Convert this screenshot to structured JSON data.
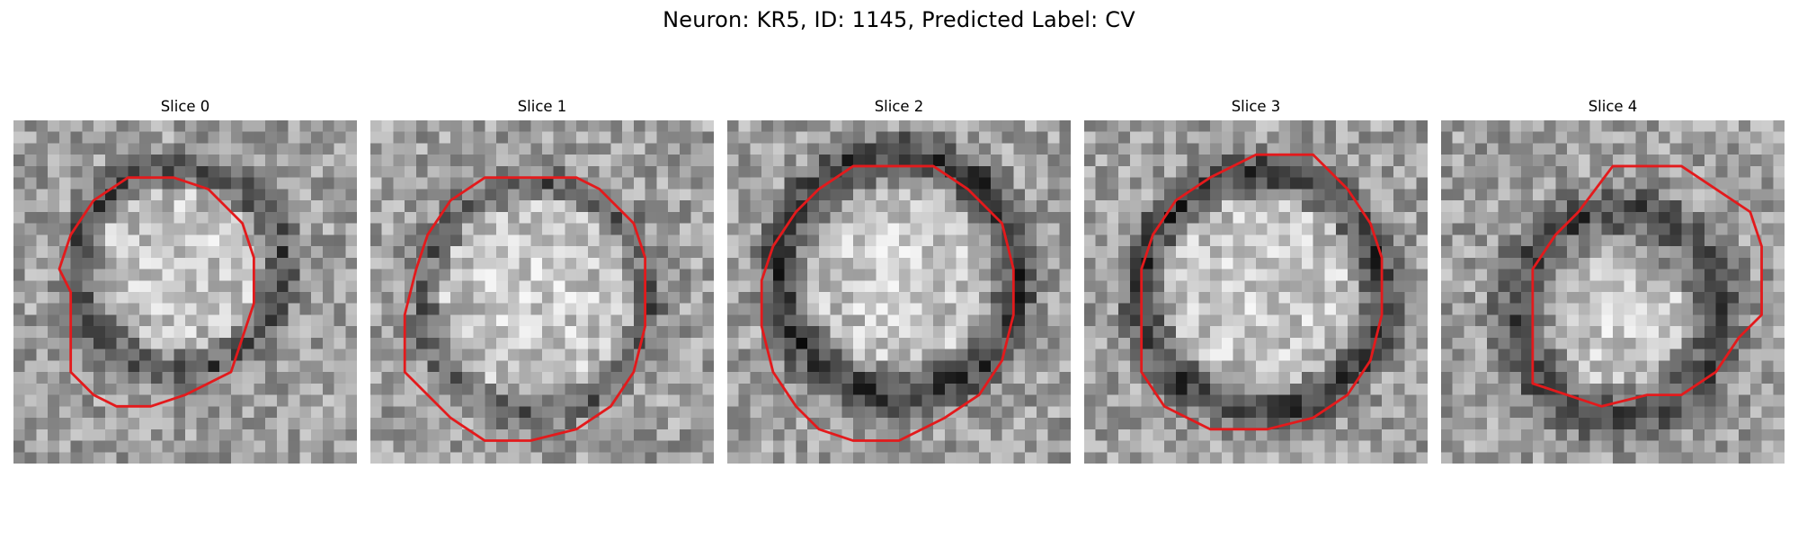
{
  "figure": {
    "title": "Neuron: KR5, ID: 1145, Predicted Label: CV",
    "contour_color": "#e31a1c"
  },
  "panels": [
    {
      "title": "Slice 0"
    },
    {
      "title": "Slice 1"
    },
    {
      "title": "Slice 2"
    },
    {
      "title": "Slice 3"
    },
    {
      "title": "Slice 4"
    }
  ]
}
